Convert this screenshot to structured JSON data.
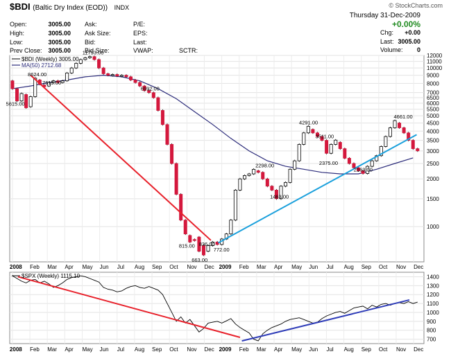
{
  "header": {
    "symbol": "$BDI",
    "name": "(Baltic Dry Index (EOD))",
    "exchange": "INDX",
    "watermark": "© StockCharts.com",
    "date": "Thursday  31-Dec-2009",
    "pct_change": "+0.00%",
    "quote_left": [
      {
        "label": "Open:",
        "value": "3005.00"
      },
      {
        "label": "High:",
        "value": "3005.00"
      },
      {
        "label": "Low:",
        "value": "3005.00"
      },
      {
        "label": "Prev Close:",
        "value": "3005.00"
      }
    ],
    "quote_mid": [
      "Ask:",
      "Ask Size:",
      "Bid:",
      "Bid Size:"
    ],
    "quote_mid2": [
      "P/E:",
      "EPS:",
      "Last:",
      "VWAP:"
    ],
    "sctr": "SCTR:",
    "quote_right": [
      {
        "label": "Chg:",
        "value": "+0.00"
      },
      {
        "label": "Last:",
        "value": "3005.00"
      },
      {
        "label": "Volume:",
        "value": "0"
      }
    ]
  },
  "chart_data": [
    {
      "type": "candlestick",
      "title": "$BDI (Weekly) 3005.00",
      "legend": [
        {
          "name": "$BDI (Weekly) 3005.00",
          "color": "#000000"
        },
        {
          "name": "MA(50) 2712.68",
          "color": "#2b2b7a"
        }
      ],
      "yscale": "log",
      "ylim": [
        600,
        12000
      ],
      "yticks": [
        12000,
        11000,
        10000,
        9000,
        8000,
        7000,
        6500,
        6000,
        5500,
        5000,
        4500,
        4000,
        3500,
        3000,
        2500,
        2000,
        1500,
        1000
      ],
      "xticks": [
        "2008",
        "Feb",
        "Mar",
        "Apr",
        "May",
        "Jun",
        "Jul",
        "Aug",
        "Sep",
        "Oct",
        "Nov",
        "Dec",
        "2009",
        "Feb",
        "Mar",
        "Apr",
        "May",
        "Jun",
        "Jul",
        "Aug",
        "Sep",
        "Oct",
        "Nov",
        "Dec"
      ],
      "annotations": [
        {
          "label": "5615.00",
          "x": 0.1,
          "y": 5615
        },
        {
          "label": "8624.00",
          "x": 1.3,
          "y": 8624
        },
        {
          "label": "7619.00",
          "x": 2.1,
          "y": 7619
        },
        {
          "label": "11793.00",
          "x": 4.3,
          "y": 11793
        },
        {
          "label": "6992.00",
          "x": 7.5,
          "y": 6992
        },
        {
          "label": "836.00",
          "x": 10.7,
          "y": 836
        },
        {
          "label": "815.00",
          "x": 9.6,
          "y": 815
        },
        {
          "label": "663.00",
          "x": 10.3,
          "y": 663
        },
        {
          "label": "772.00",
          "x": 11.5,
          "y": 772
        },
        {
          "label": "2298.00",
          "x": 13.8,
          "y": 2298
        },
        {
          "label": "1463.00",
          "x": 14.6,
          "y": 1463
        },
        {
          "label": "4291.00",
          "x": 16.2,
          "y": 4291
        },
        {
          "label": "3511.00",
          "x": 17.1,
          "y": 3511
        },
        {
          "label": "2375.00",
          "x": 17.3,
          "y": 2375
        },
        {
          "label": "2163.00",
          "x": 19.2,
          "y": 2163
        },
        {
          "label": "4661.00",
          "x": 21.4,
          "y": 4661
        }
      ],
      "bars": [
        {
          "x": 0.0,
          "o": 8300,
          "c": 7400
        },
        {
          "x": 0.25,
          "o": 7400,
          "c": 6200
        },
        {
          "x": 0.5,
          "o": 6200,
          "c": 6900
        },
        {
          "x": 0.75,
          "o": 6800,
          "c": 5615
        },
        {
          "x": 1.0,
          "o": 5700,
          "c": 6600
        },
        {
          "x": 1.25,
          "o": 6600,
          "c": 8624
        },
        {
          "x": 1.5,
          "o": 8400,
          "c": 7900
        },
        {
          "x": 1.75,
          "o": 7800,
          "c": 7619
        },
        {
          "x": 2.0,
          "o": 7700,
          "c": 8100
        },
        {
          "x": 2.25,
          "o": 8100,
          "c": 8300
        },
        {
          "x": 2.5,
          "o": 8300,
          "c": 8100
        },
        {
          "x": 2.75,
          "o": 8100,
          "c": 8300
        },
        {
          "x": 3.0,
          "o": 8300,
          "c": 9300
        },
        {
          "x": 3.25,
          "o": 9300,
          "c": 10000
        },
        {
          "x": 3.5,
          "o": 10000,
          "c": 10700
        },
        {
          "x": 3.75,
          "o": 10700,
          "c": 11300
        },
        {
          "x": 4.0,
          "o": 11300,
          "c": 11600
        },
        {
          "x": 4.25,
          "o": 11600,
          "c": 11793
        },
        {
          "x": 4.5,
          "o": 11793,
          "c": 11300
        },
        {
          "x": 4.75,
          "o": 11300,
          "c": 10000
        },
        {
          "x": 5.0,
          "o": 10000,
          "c": 9200
        },
        {
          "x": 5.25,
          "o": 9200,
          "c": 9000
        },
        {
          "x": 5.5,
          "o": 9000,
          "c": 9100
        },
        {
          "x": 5.75,
          "o": 9100,
          "c": 8900
        },
        {
          "x": 6.0,
          "o": 8900,
          "c": 9000
        },
        {
          "x": 6.25,
          "o": 9000,
          "c": 8800
        },
        {
          "x": 6.5,
          "o": 8800,
          "c": 8400
        },
        {
          "x": 6.75,
          "o": 8400,
          "c": 8100
        },
        {
          "x": 7.0,
          "o": 8100,
          "c": 7700
        },
        {
          "x": 7.25,
          "o": 7700,
          "c": 7200
        },
        {
          "x": 7.5,
          "o": 7200,
          "c": 6992
        },
        {
          "x": 7.75,
          "o": 6992,
          "c": 6500
        },
        {
          "x": 8.0,
          "o": 6500,
          "c": 5400
        },
        {
          "x": 8.25,
          "o": 5400,
          "c": 4400
        },
        {
          "x": 8.5,
          "o": 4400,
          "c": 3300
        },
        {
          "x": 8.75,
          "o": 3300,
          "c": 2500
        },
        {
          "x": 9.0,
          "o": 2500,
          "c": 1600
        },
        {
          "x": 9.25,
          "o": 1600,
          "c": 1100
        },
        {
          "x": 9.5,
          "o": 1100,
          "c": 900
        },
        {
          "x": 9.75,
          "o": 880,
          "c": 800
        },
        {
          "x": 10.0,
          "o": 830,
          "c": 820
        },
        {
          "x": 10.25,
          "o": 860,
          "c": 700
        },
        {
          "x": 10.5,
          "o": 760,
          "c": 663
        },
        {
          "x": 10.75,
          "o": 700,
          "c": 760
        },
        {
          "x": 11.0,
          "o": 760,
          "c": 800
        },
        {
          "x": 11.25,
          "o": 800,
          "c": 772
        },
        {
          "x": 11.5,
          "o": 772,
          "c": 836
        },
        {
          "x": 11.75,
          "o": 836,
          "c": 900
        },
        {
          "x": 12.0,
          "o": 900,
          "c": 1100
        },
        {
          "x": 12.25,
          "o": 1100,
          "c": 1700
        },
        {
          "x": 12.5,
          "o": 1700,
          "c": 2000
        },
        {
          "x": 12.75,
          "o": 2000,
          "c": 2100
        },
        {
          "x": 13.0,
          "o": 2100,
          "c": 2150
        },
        {
          "x": 13.25,
          "o": 2150,
          "c": 2298
        },
        {
          "x": 13.5,
          "o": 2250,
          "c": 2200
        },
        {
          "x": 13.75,
          "o": 2200,
          "c": 2000
        },
        {
          "x": 14.0,
          "o": 2000,
          "c": 1800
        },
        {
          "x": 14.25,
          "o": 1800,
          "c": 1700
        },
        {
          "x": 14.5,
          "o": 1700,
          "c": 1500
        },
        {
          "x": 14.75,
          "o": 1500,
          "c": 1800
        },
        {
          "x": 15.0,
          "o": 1800,
          "c": 1900
        },
        {
          "x": 15.25,
          "o": 1900,
          "c": 2300
        },
        {
          "x": 15.5,
          "o": 2300,
          "c": 2600
        },
        {
          "x": 15.75,
          "o": 2600,
          "c": 3300
        },
        {
          "x": 16.0,
          "o": 3300,
          "c": 3900
        },
        {
          "x": 16.25,
          "o": 3900,
          "c": 4291
        },
        {
          "x": 16.5,
          "o": 4100,
          "c": 3900
        },
        {
          "x": 16.75,
          "o": 3900,
          "c": 3700
        },
        {
          "x": 17.0,
          "o": 3700,
          "c": 3500
        },
        {
          "x": 17.25,
          "o": 3500,
          "c": 2900
        },
        {
          "x": 17.5,
          "o": 2900,
          "c": 3300
        },
        {
          "x": 17.75,
          "o": 3300,
          "c": 3511
        },
        {
          "x": 18.0,
          "o": 3400,
          "c": 3100
        },
        {
          "x": 18.25,
          "o": 3100,
          "c": 2700
        },
        {
          "x": 18.5,
          "o": 2700,
          "c": 2500
        },
        {
          "x": 18.75,
          "o": 2500,
          "c": 2350
        },
        {
          "x": 19.0,
          "o": 2350,
          "c": 2250
        },
        {
          "x": 19.25,
          "o": 2250,
          "c": 2163
        },
        {
          "x": 19.5,
          "o": 2163,
          "c": 2400
        },
        {
          "x": 19.75,
          "o": 2400,
          "c": 2600
        },
        {
          "x": 20.0,
          "o": 2600,
          "c": 2800
        },
        {
          "x": 20.25,
          "o": 2800,
          "c": 3200
        },
        {
          "x": 20.5,
          "o": 3200,
          "c": 3700
        },
        {
          "x": 20.75,
          "o": 3700,
          "c": 4200
        },
        {
          "x": 21.0,
          "o": 4200,
          "c": 4661
        },
        {
          "x": 21.25,
          "o": 4500,
          "c": 4200
        },
        {
          "x": 21.5,
          "o": 4200,
          "c": 3900
        },
        {
          "x": 21.75,
          "o": 3900,
          "c": 3500
        },
        {
          "x": 22.0,
          "o": 3500,
          "c": 3100
        },
        {
          "x": 22.25,
          "o": 3100,
          "c": 3005
        }
      ],
      "ma50": [
        [
          0,
          7400
        ],
        [
          1,
          7700
        ],
        [
          2,
          8100
        ],
        [
          3,
          8400
        ],
        [
          4,
          8800
        ],
        [
          5,
          9000
        ],
        [
          6,
          8800
        ],
        [
          7,
          8300
        ],
        [
          8,
          7400
        ],
        [
          9,
          6400
        ],
        [
          10,
          5300
        ],
        [
          11,
          4400
        ],
        [
          12,
          3600
        ],
        [
          13,
          3000
        ],
        [
          14,
          2600
        ],
        [
          15,
          2400
        ],
        [
          16,
          2300
        ],
        [
          17,
          2200
        ],
        [
          18,
          2150
        ],
        [
          19,
          2150
        ],
        [
          20,
          2300
        ],
        [
          21,
          2500
        ],
        [
          22,
          2712
        ]
      ],
      "trendlines": [
        {
          "color": "#e8202a",
          "from": [
            1.0,
            9000
          ],
          "to": [
            10.9,
            820
          ]
        },
        {
          "color": "#1aa0dc",
          "from": [
            11.3,
            790
          ],
          "to": [
            22.2,
            3800
          ]
        }
      ]
    },
    {
      "type": "line",
      "title": "$SPX (Weekly) 1115.10",
      "ylim": [
        650,
        1450
      ],
      "yticks": [
        1400,
        1300,
        1200,
        1100,
        1000,
        900,
        800,
        700
      ],
      "xticks": [
        "2008",
        "Feb",
        "Mar",
        "Apr",
        "May",
        "Jun",
        "Jul",
        "Aug",
        "Sep",
        "Oct",
        "Nov",
        "Dec",
        "2009",
        "Feb",
        "Mar",
        "Apr",
        "May",
        "Jun",
        "Jul",
        "Aug",
        "Sep",
        "Oct",
        "Nov",
        "Dec"
      ],
      "series": [
        {
          "name": "$SPX (Weekly) 1115.10",
          "color": "#000000",
          "points": [
            [
              0,
              1410
            ],
            [
              0.25,
              1380
            ],
            [
              0.5,
              1350
            ],
            [
              0.75,
              1330
            ],
            [
              1.0,
              1360
            ],
            [
              1.25,
              1370
            ],
            [
              1.5,
              1330
            ],
            [
              1.75,
              1350
            ],
            [
              2.0,
              1320
            ],
            [
              2.25,
              1280
            ],
            [
              2.5,
              1300
            ],
            [
              2.75,
              1330
            ],
            [
              3.0,
              1370
            ],
            [
              3.25,
              1390
            ],
            [
              3.5,
              1400
            ],
            [
              3.75,
              1410
            ],
            [
              4.0,
              1400
            ],
            [
              4.25,
              1380
            ],
            [
              4.5,
              1360
            ],
            [
              4.75,
              1340
            ],
            [
              5.0,
              1280
            ],
            [
              5.25,
              1260
            ],
            [
              5.5,
              1250
            ],
            [
              5.75,
              1230
            ],
            [
              6.0,
              1240
            ],
            [
              6.25,
              1270
            ],
            [
              6.5,
              1290
            ],
            [
              6.75,
              1300
            ],
            [
              7.0,
              1280
            ],
            [
              7.25,
              1270
            ],
            [
              7.5,
              1290
            ],
            [
              7.75,
              1270
            ],
            [
              8.0,
              1250
            ],
            [
              8.25,
              1200
            ],
            [
              8.5,
              1100
            ],
            [
              8.75,
              1000
            ],
            [
              9.0,
              900
            ],
            [
              9.25,
              950
            ],
            [
              9.5,
              880
            ],
            [
              9.75,
              920
            ],
            [
              10.0,
              850
            ],
            [
              10.25,
              780
            ],
            [
              10.5,
              820
            ],
            [
              10.75,
              880
            ],
            [
              11.0,
              890
            ],
            [
              11.25,
              900
            ],
            [
              11.5,
              880
            ],
            [
              11.75,
              905
            ],
            [
              12.0,
              930
            ],
            [
              12.25,
              870
            ],
            [
              12.5,
              830
            ],
            [
              12.75,
              800
            ],
            [
              13.0,
              770
            ],
            [
              13.25,
              700
            ],
            [
              13.5,
              680
            ],
            [
              13.75,
              760
            ],
            [
              14.0,
              800
            ],
            [
              14.25,
              830
            ],
            [
              14.5,
              850
            ],
            [
              14.75,
              870
            ],
            [
              15.0,
              900
            ],
            [
              15.25,
              920
            ],
            [
              15.5,
              930
            ],
            [
              15.75,
              940
            ],
            [
              16.0,
              920
            ],
            [
              16.25,
              900
            ],
            [
              16.5,
              880
            ],
            [
              16.75,
              890
            ],
            [
              17.0,
              930
            ],
            [
              17.25,
              960
            ],
            [
              17.5,
              980
            ],
            [
              17.75,
              1000
            ],
            [
              18.0,
              1010
            ],
            [
              18.25,
              990
            ],
            [
              18.5,
              1020
            ],
            [
              18.75,
              1050
            ],
            [
              19.0,
              1060
            ],
            [
              19.25,
              1070
            ],
            [
              19.5,
              1040
            ],
            [
              19.75,
              1080
            ],
            [
              20.0,
              1060
            ],
            [
              20.25,
              1090
            ],
            [
              20.5,
              1100
            ],
            [
              20.75,
              1080
            ],
            [
              21.0,
              1100
            ],
            [
              21.25,
              1110
            ],
            [
              21.5,
              1100
            ],
            [
              21.75,
              1120
            ],
            [
              22.0,
              1100
            ],
            [
              22.25,
              1115
            ]
          ]
        }
      ],
      "trendlines": [
        {
          "color": "#e8202a",
          "from": [
            0.3,
            1400
          ],
          "to": [
            12.5,
            720
          ]
        },
        {
          "color": "#2e3cb8",
          "from": [
            12.6,
            680
          ],
          "to": [
            21.8,
            1140
          ]
        }
      ]
    }
  ]
}
